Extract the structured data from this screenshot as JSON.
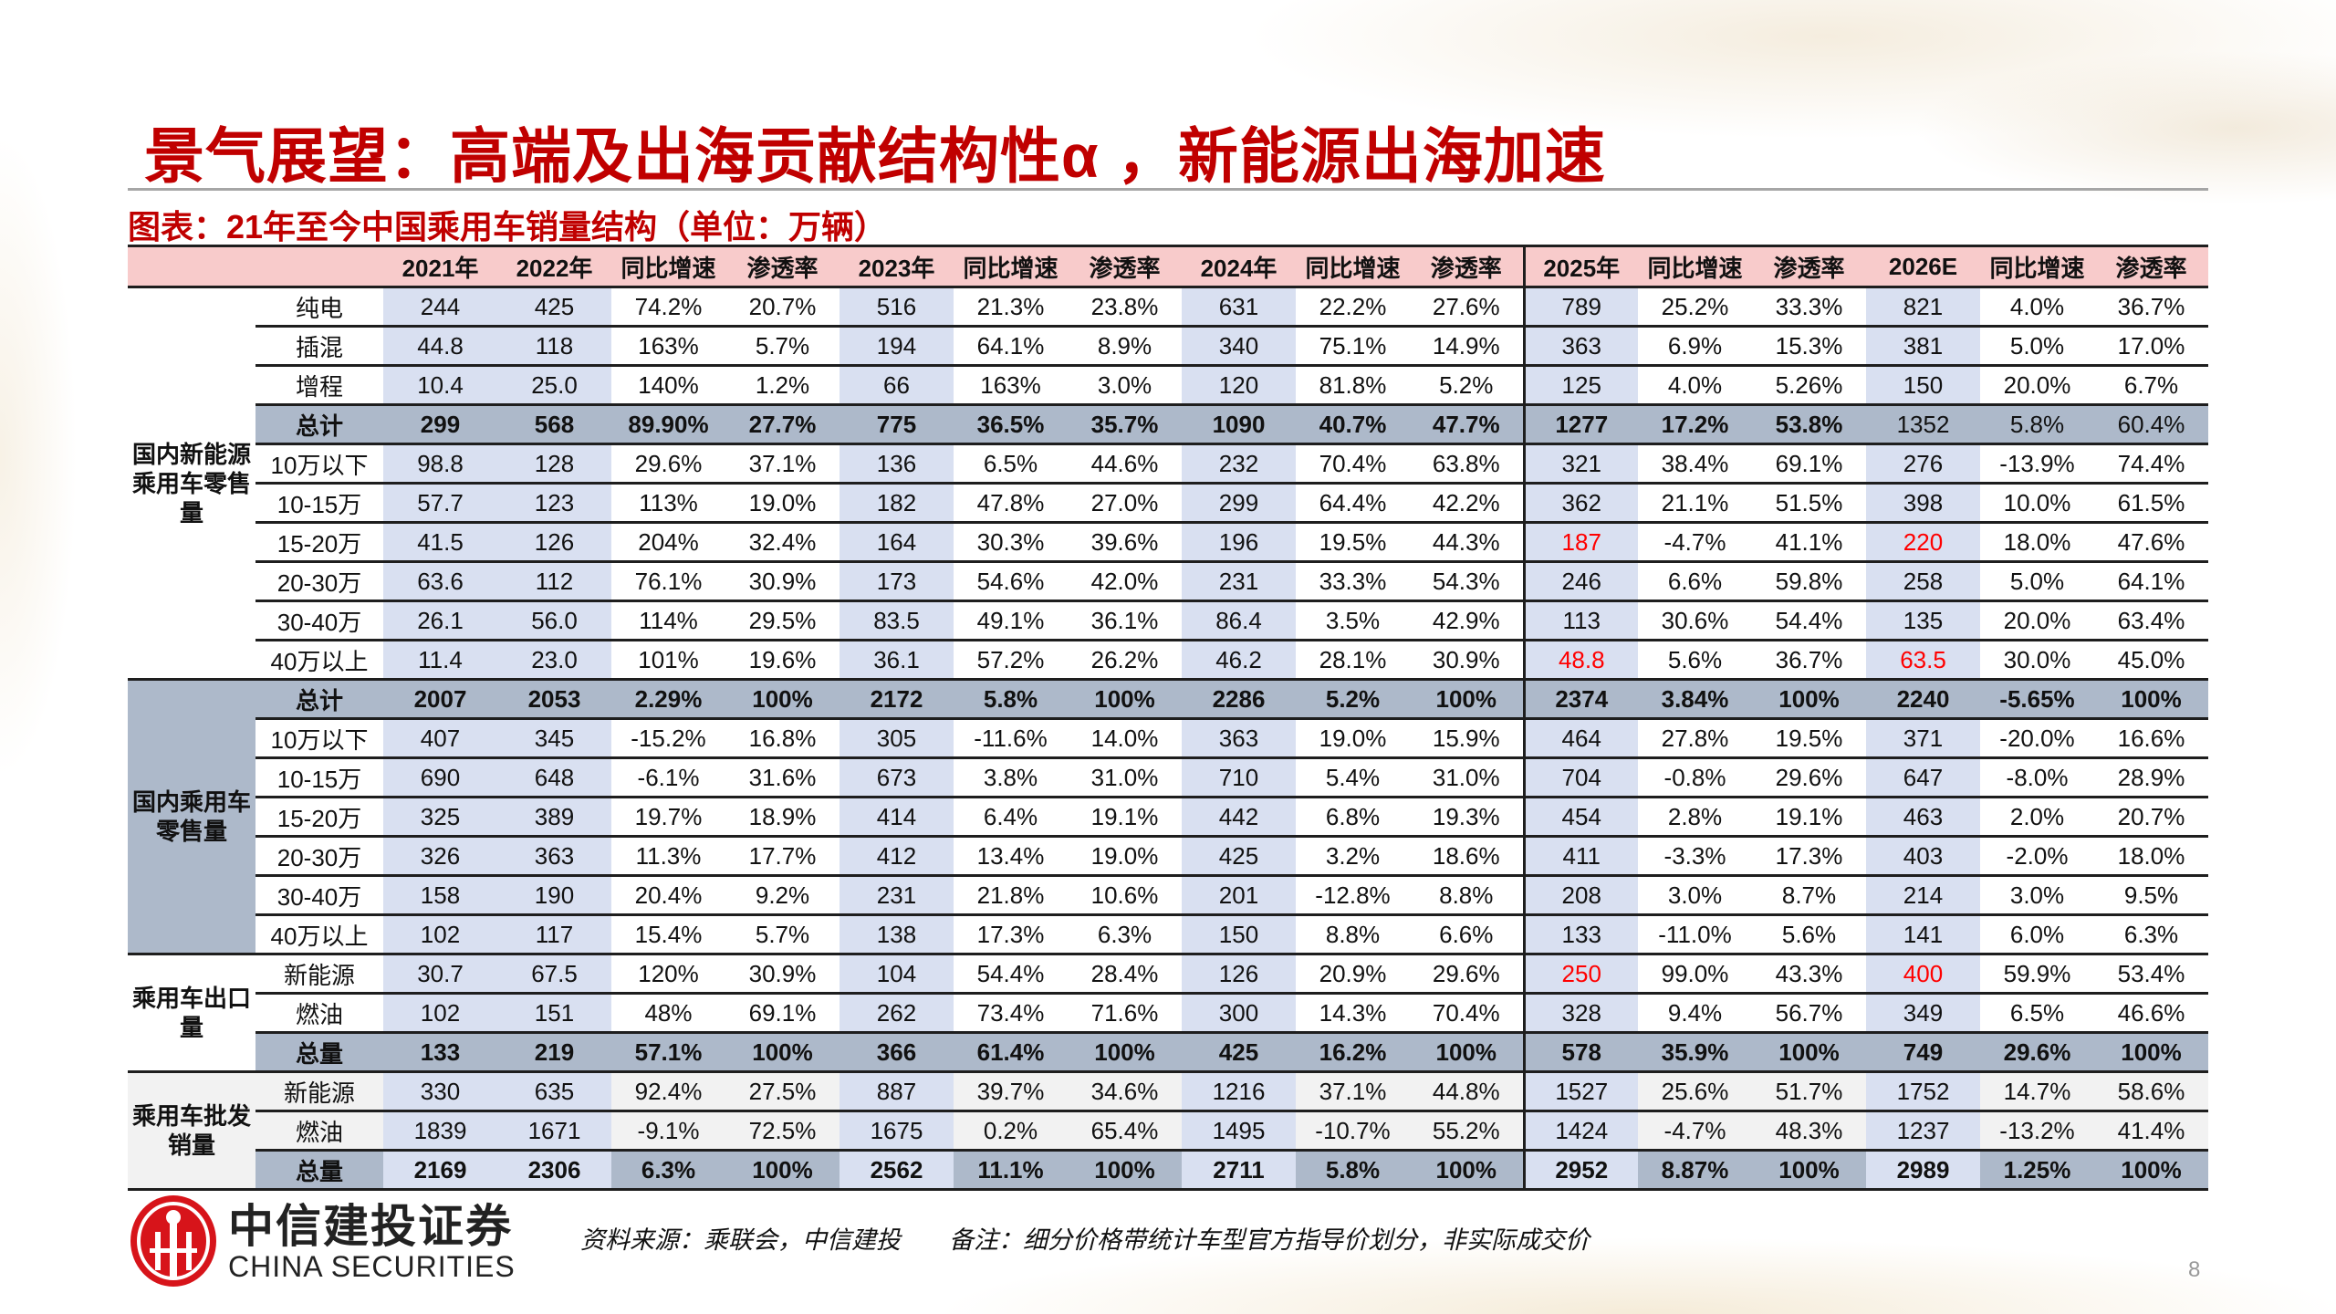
{
  "title": "景气展望：高端及出海贡献结构性α ，新能源出海加速",
  "subtitle": "图表：21年至今中国乘用车销量结构（单位：万辆）",
  "colors": {
    "title": "#c00000",
    "header_bg": "#f8cbcb",
    "value_col_bg": "#d9e0f1",
    "total_row_bg": "#adb9ca",
    "highlight": "#ff0000"
  },
  "table": {
    "headers": [
      "",
      "",
      "2021年",
      "2022年",
      "同比增速",
      "渗透率",
      "2023年",
      "同比增速",
      "渗透率",
      "2024年",
      "同比增速",
      "渗透率",
      "2025年",
      "同比增速",
      "渗透率",
      "2026E",
      "同比增速",
      "渗透率"
    ],
    "groups": [
      {
        "label": "国内新能源乘用车零售量",
        "rows": [
          {
            "label": "纯电",
            "cells": [
              "244",
              "425",
              "74.2%",
              "20.7%",
              "516",
              "21.3%",
              "23.8%",
              "631",
              "22.2%",
              "27.6%",
              "789",
              "25.2%",
              "33.3%",
              "821",
              "4.0%",
              "36.7%"
            ]
          },
          {
            "label": "插混",
            "cells": [
              "44.8",
              "118",
              "163%",
              "5.7%",
              "194",
              "64.1%",
              "8.9%",
              "340",
              "75.1%",
              "14.9%",
              "363",
              "6.9%",
              "15.3%",
              "381",
              "5.0%",
              "17.0%"
            ]
          },
          {
            "label": "增程",
            "cells": [
              "10.4",
              "25.0",
              "140%",
              "1.2%",
              "66",
              "163%",
              "3.0%",
              "120",
              "81.8%",
              "5.2%",
              "125",
              "4.0%",
              "5.26%",
              "150",
              "20.0%",
              "6.7%"
            ]
          },
          {
            "label": "总计",
            "total": true,
            "non_bold": [
              13,
              14,
              15
            ],
            "cells": [
              "299",
              "568",
              "89.90%",
              "27.7%",
              "775",
              "36.5%",
              "35.7%",
              "1090",
              "40.7%",
              "47.7%",
              "1277",
              "17.2%",
              "53.8%",
              "1352",
              "5.8%",
              "60.4%"
            ]
          },
          {
            "label": "10万以下",
            "cells": [
              "98.8",
              "128",
              "29.6%",
              "37.1%",
              "136",
              "6.5%",
              "44.6%",
              "232",
              "70.4%",
              "63.8%",
              "321",
              "38.4%",
              "69.1%",
              "276",
              "-13.9%",
              "74.4%"
            ]
          },
          {
            "label": "10-15万",
            "cells": [
              "57.7",
              "123",
              "113%",
              "19.0%",
              "182",
              "47.8%",
              "27.0%",
              "299",
              "64.4%",
              "42.2%",
              "362",
              "21.1%",
              "51.5%",
              "398",
              "10.0%",
              "61.5%"
            ]
          },
          {
            "label": "15-20万",
            "red": [
              10,
              13
            ],
            "cells": [
              "41.5",
              "126",
              "204%",
              "32.4%",
              "164",
              "30.3%",
              "39.6%",
              "196",
              "19.5%",
              "44.3%",
              "187",
              "-4.7%",
              "41.1%",
              "220",
              "18.0%",
              "47.6%"
            ]
          },
          {
            "label": "20-30万",
            "cells": [
              "63.6",
              "112",
              "76.1%",
              "30.9%",
              "173",
              "54.6%",
              "42.0%",
              "231",
              "33.3%",
              "54.3%",
              "246",
              "6.6%",
              "59.8%",
              "258",
              "5.0%",
              "64.1%"
            ]
          },
          {
            "label": "30-40万",
            "cells": [
              "26.1",
              "56.0",
              "114%",
              "29.5%",
              "83.5",
              "49.1%",
              "36.1%",
              "86.4",
              "3.5%",
              "42.9%",
              "113",
              "30.6%",
              "54.4%",
              "135",
              "20.0%",
              "63.4%"
            ]
          },
          {
            "label": "40万以上",
            "red": [
              10,
              13
            ],
            "cells": [
              "11.4",
              "23.0",
              "101%",
              "19.6%",
              "36.1",
              "57.2%",
              "26.2%",
              "46.2",
              "28.1%",
              "30.9%",
              "48.8",
              "5.6%",
              "36.7%",
              "63.5",
              "30.0%",
              "45.0%"
            ]
          }
        ]
      },
      {
        "label": "国内乘用车零售量",
        "rows": [
          {
            "label": "总计",
            "total": true,
            "cells": [
              "2007",
              "2053",
              "2.29%",
              "100%",
              "2172",
              "5.8%",
              "100%",
              "2286",
              "5.2%",
              "100%",
              "2374",
              "3.84%",
              "100%",
              "2240",
              "-5.65%",
              "100%"
            ]
          },
          {
            "label": "10万以下",
            "cells": [
              "407",
              "345",
              "-15.2%",
              "16.8%",
              "305",
              "-11.6%",
              "14.0%",
              "363",
              "19.0%",
              "15.9%",
              "464",
              "27.8%",
              "19.5%",
              "371",
              "-20.0%",
              "16.6%"
            ]
          },
          {
            "label": "10-15万",
            "cells": [
              "690",
              "648",
              "-6.1%",
              "31.6%",
              "673",
              "3.8%",
              "31.0%",
              "710",
              "5.4%",
              "31.0%",
              "704",
              "-0.8%",
              "29.6%",
              "647",
              "-8.0%",
              "28.9%"
            ]
          },
          {
            "label": "15-20万",
            "cells": [
              "325",
              "389",
              "19.7%",
              "18.9%",
              "414",
              "6.4%",
              "19.1%",
              "442",
              "6.8%",
              "19.3%",
              "454",
              "2.8%",
              "19.1%",
              "463",
              "2.0%",
              "20.7%"
            ]
          },
          {
            "label": "20-30万",
            "cells": [
              "326",
              "363",
              "11.3%",
              "17.7%",
              "412",
              "13.4%",
              "19.0%",
              "425",
              "3.2%",
              "18.6%",
              "411",
              "-3.3%",
              "17.3%",
              "403",
              "-2.0%",
              "18.0%"
            ]
          },
          {
            "label": "30-40万",
            "cells": [
              "158",
              "190",
              "20.4%",
              "9.2%",
              "231",
              "21.8%",
              "10.6%",
              "201",
              "-12.8%",
              "8.8%",
              "208",
              "3.0%",
              "8.7%",
              "214",
              "3.0%",
              "9.5%"
            ]
          },
          {
            "label": "40万以上",
            "cells": [
              "102",
              "117",
              "15.4%",
              "5.7%",
              "138",
              "17.3%",
              "6.3%",
              "150",
              "8.8%",
              "6.6%",
              "133",
              "-11.0%",
              "5.6%",
              "141",
              "6.0%",
              "6.3%"
            ]
          }
        ]
      },
      {
        "label": "乘用车出口量",
        "rows": [
          {
            "label": "新能源",
            "red": [
              10,
              13
            ],
            "cells": [
              "30.7",
              "67.5",
              "120%",
              "30.9%",
              "104",
              "54.4%",
              "28.4%",
              "126",
              "20.9%",
              "29.6%",
              "250",
              "99.0%",
              "43.3%",
              "400",
              "59.9%",
              "53.4%"
            ]
          },
          {
            "label": "燃油",
            "cells": [
              "102",
              "151",
              "48%",
              "69.1%",
              "262",
              "73.4%",
              "71.6%",
              "300",
              "14.3%",
              "70.4%",
              "328",
              "9.4%",
              "56.7%",
              "349",
              "6.5%",
              "46.6%"
            ]
          },
          {
            "label": "总量",
            "total": true,
            "cells": [
              "133",
              "219",
              "57.1%",
              "100%",
              "366",
              "61.4%",
              "100%",
              "425",
              "16.2%",
              "100%",
              "578",
              "35.9%",
              "100%",
              "749",
              "29.6%",
              "100%"
            ]
          }
        ]
      },
      {
        "label": "乘用车批发销量",
        "wholesale": true,
        "rows": [
          {
            "label": "新能源",
            "cells": [
              "330",
              "635",
              "92.4%",
              "27.5%",
              "887",
              "39.7%",
              "34.6%",
              "1216",
              "37.1%",
              "44.8%",
              "1527",
              "25.6%",
              "51.7%",
              "1752",
              "14.7%",
              "58.6%"
            ]
          },
          {
            "label": "燃油",
            "cells": [
              "1839",
              "1671",
              "-9.1%",
              "72.5%",
              "1675",
              "0.2%",
              "65.4%",
              "1495",
              "-10.7%",
              "55.2%",
              "1424",
              "-4.7%",
              "48.3%",
              "1237",
              "-13.2%",
              "41.4%"
            ]
          },
          {
            "label": "总量",
            "total": true,
            "cells": [
              "2169",
              "2306",
              "6.3%",
              "100%",
              "2562",
              "11.1%",
              "100%",
              "2711",
              "5.8%",
              "100%",
              "2952",
              "8.87%",
              "100%",
              "2989",
              "1.25%",
              "100%"
            ]
          }
        ]
      }
    ]
  },
  "footer": {
    "logo_cn": "中信建投证券",
    "logo_en": "CHINA SECURITIES",
    "source": "资料来源：乘联会，中信建投",
    "note": "备注：细分价格带统计车型官方指导价划分，非实际成交价",
    "page_number": "8"
  }
}
